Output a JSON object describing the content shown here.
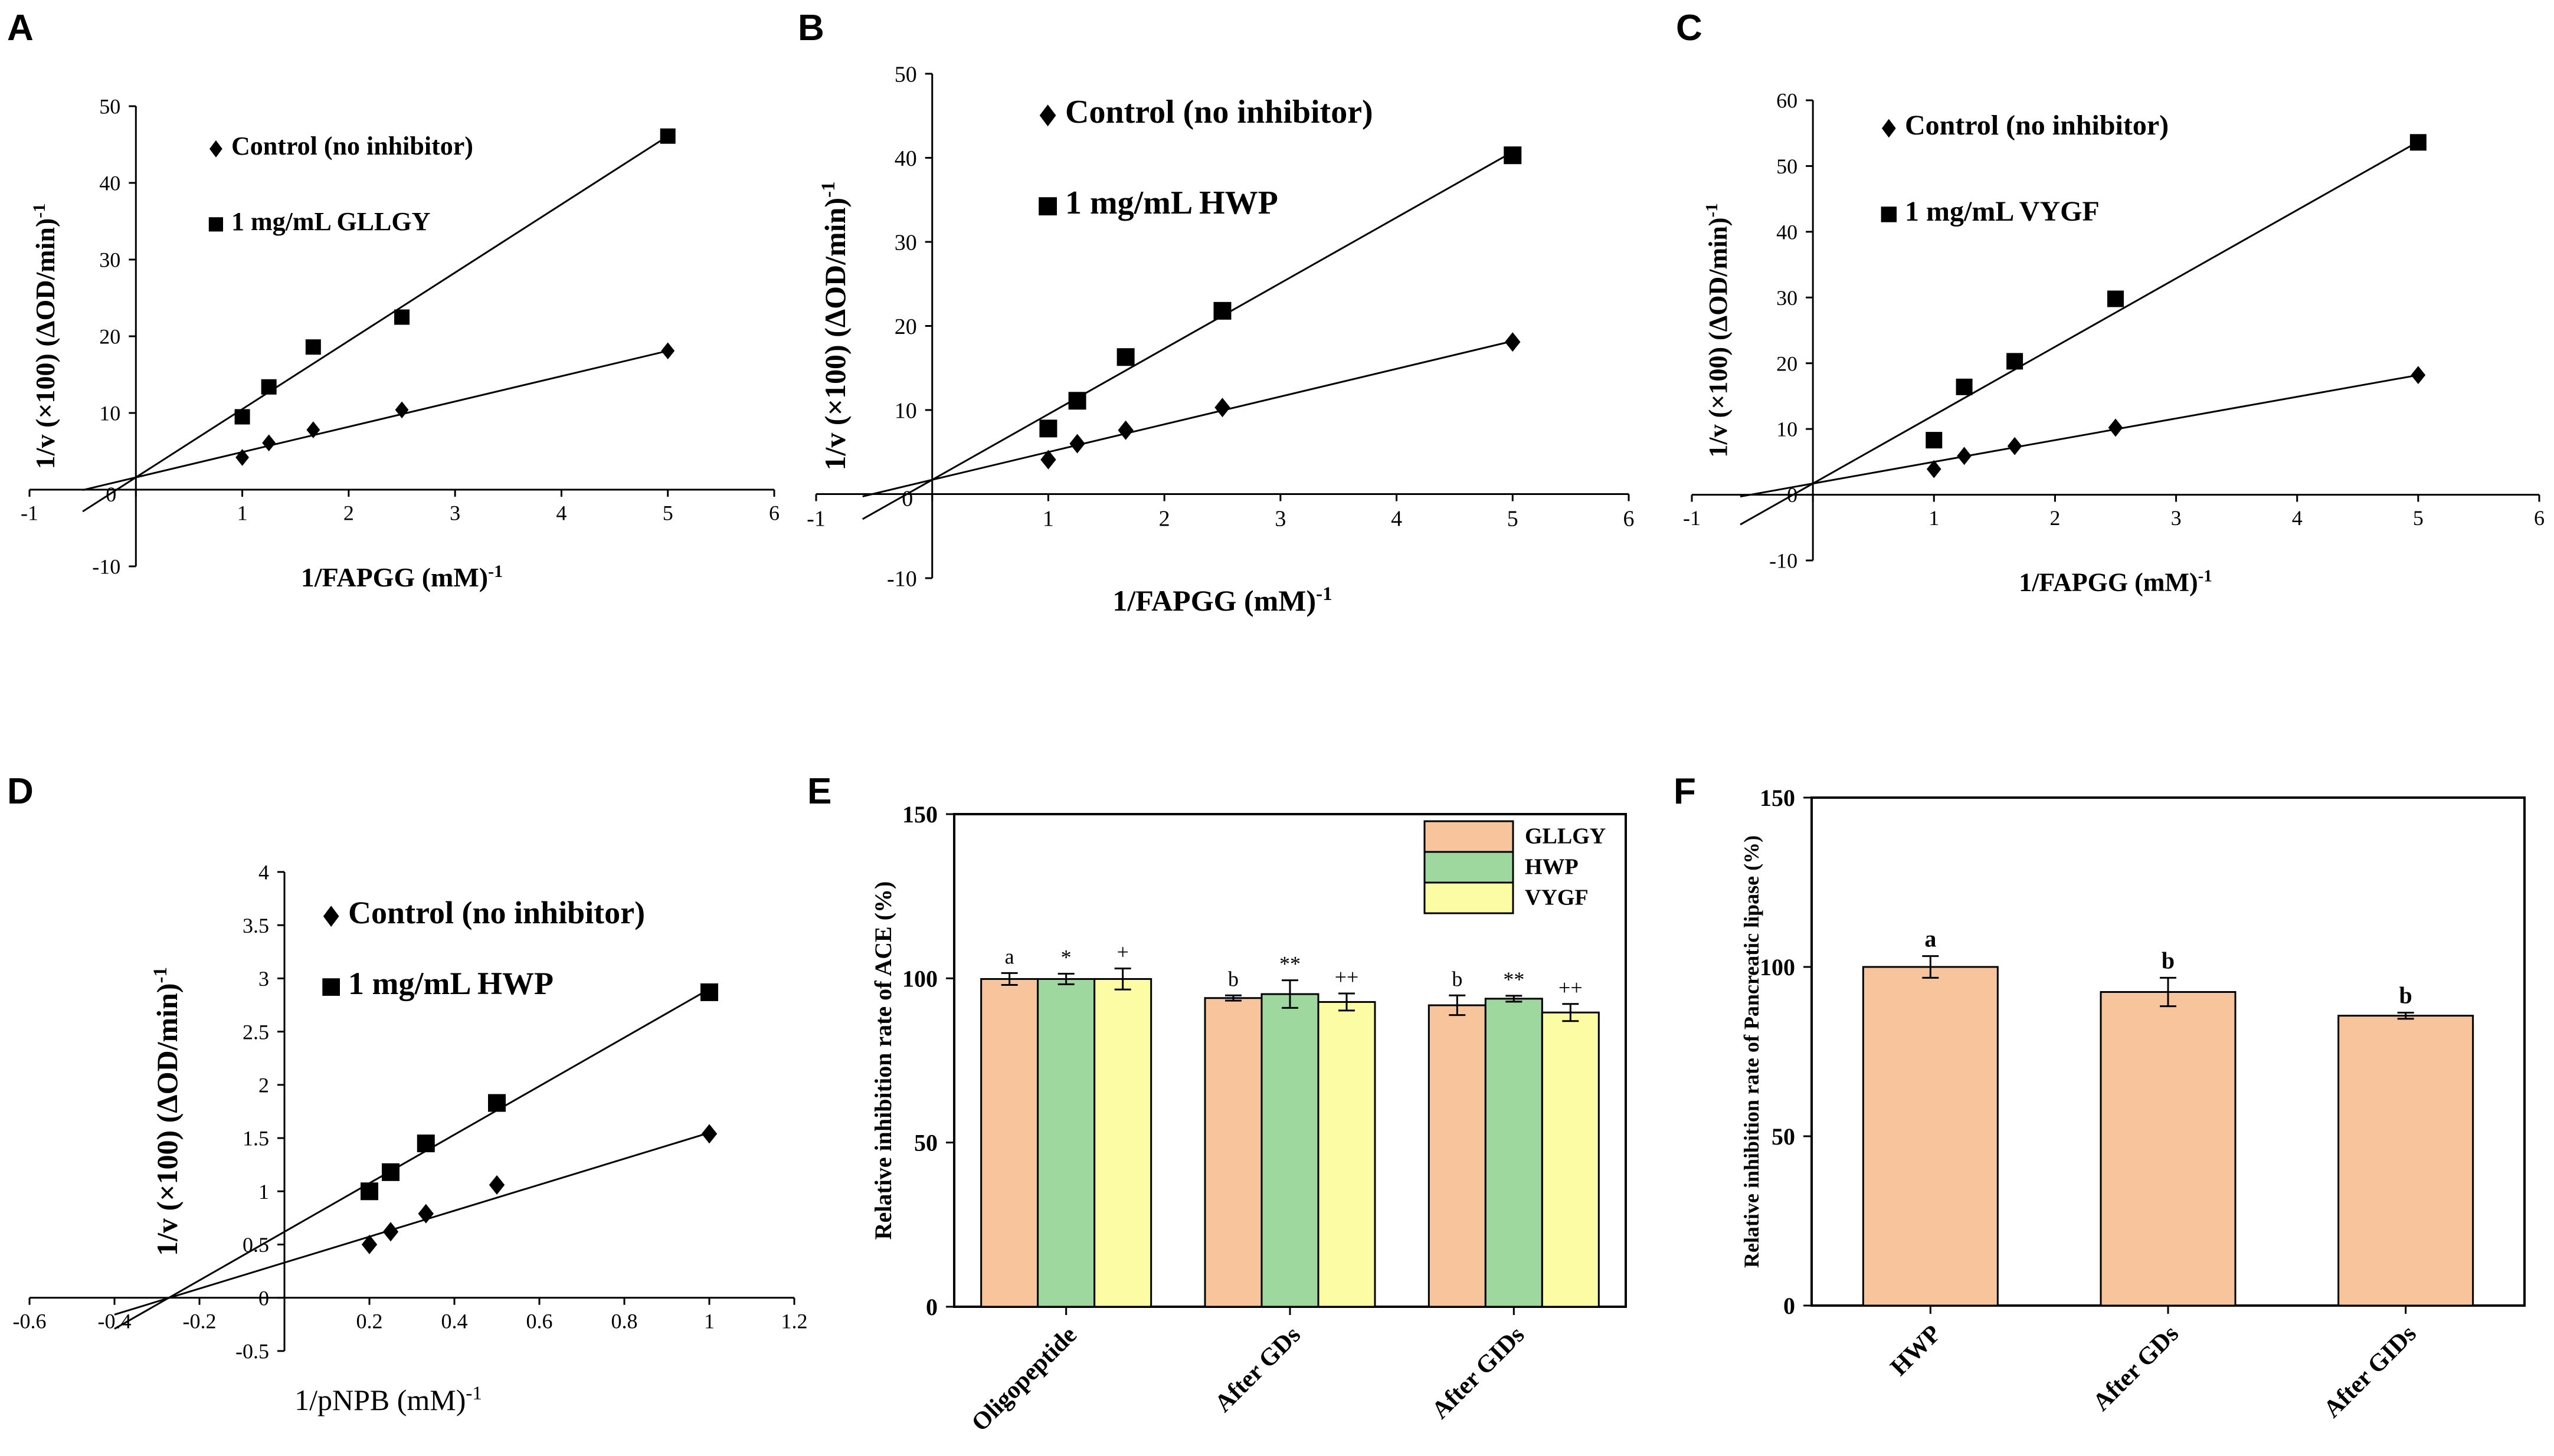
{
  "figure": {
    "panel_letters": [
      "A",
      "B",
      "C",
      "D",
      "E",
      "F"
    ]
  },
  "chart_data": [
    {
      "panel": "A",
      "type": "scatter",
      "xlabel": "1/FAPGG (mM)",
      "xlabel_sup": "-1",
      "ylabel": "1/v (×100) (ΔOD/min)",
      "ylabel_sup": "-1",
      "xlim": [
        -1,
        6
      ],
      "ylim": [
        -10,
        50
      ],
      "xticks": [
        -1,
        0,
        1,
        2,
        3,
        4,
        5,
        6
      ],
      "yticks": [
        -10,
        0,
        10,
        20,
        30,
        40,
        50
      ],
      "xtick_labels": [
        "-1",
        "0",
        "1",
        "2",
        "3",
        "4",
        "5",
        "6"
      ],
      "ytick_labels": [
        "-10",
        "",
        "10",
        "20",
        "30",
        "40",
        "50"
      ],
      "origin_label": "0",
      "series": [
        {
          "name": "Control (no inhibitor)",
          "marker": "diamond",
          "x": [
            1,
            1.25,
            1.667,
            2.5,
            5
          ],
          "y": [
            4.2,
            6.1,
            7.8,
            10.4,
            18.1
          ],
          "fit": {
            "slope": 3.3,
            "intercept": 1.6,
            "x_range": [
              -0.5,
              5
            ]
          }
        },
        {
          "name": "1 mg/mL GLLGY",
          "marker": "square",
          "x": [
            1,
            1.25,
            1.667,
            2.5,
            5
          ],
          "y": [
            9.5,
            13.4,
            18.6,
            22.5,
            46.1
          ],
          "fit": {
            "slope": 8.9,
            "intercept": 1.6,
            "x_range": [
              -0.5,
              5
            ]
          }
        }
      ]
    },
    {
      "panel": "B",
      "type": "scatter",
      "xlabel": "1/FAPGG (mM)",
      "xlabel_sup": "-1",
      "ylabel": "1/v (×100) (ΔOD/min)",
      "ylabel_sup": "-1",
      "xlim": [
        -1,
        6
      ],
      "ylim": [
        -10,
        50
      ],
      "xticks": [
        -1,
        0,
        1,
        2,
        3,
        4,
        5,
        6
      ],
      "yticks": [
        -10,
        0,
        10,
        20,
        30,
        40,
        50
      ],
      "xtick_labels": [
        "-1",
        "0",
        "1",
        "2",
        "3",
        "4",
        "5",
        "6"
      ],
      "ytick_labels": [
        "-10",
        "",
        "10",
        "20",
        "30",
        "40",
        "50"
      ],
      "origin_label": "0",
      "series": [
        {
          "name": "Control (no inhibitor)",
          "marker": "diamond",
          "x": [
            1,
            1.25,
            1.667,
            2.5,
            5
          ],
          "y": [
            4.1,
            6.0,
            7.6,
            10.3,
            18.1
          ],
          "fit": {
            "slope": 3.3,
            "intercept": 1.7,
            "x_range": [
              -0.6,
              5
            ]
          }
        },
        {
          "name": "1 mg/mL HWP",
          "marker": "square",
          "x": [
            1,
            1.25,
            1.667,
            2.5,
            5
          ],
          "y": [
            7.8,
            11.1,
            16.3,
            21.8,
            40.3
          ],
          "fit": {
            "slope": 7.8,
            "intercept": 1.7,
            "x_range": [
              -0.6,
              5
            ]
          }
        }
      ]
    },
    {
      "panel": "C",
      "type": "scatter",
      "xlabel": "1/FAPGG (mM)",
      "xlabel_sup": "-1",
      "ylabel": "1/v (×100) (ΔOD/min)",
      "ylabel_sup": "-1",
      "xlim": [
        -1,
        6
      ],
      "ylim": [
        -10,
        60
      ],
      "xticks": [
        -1,
        0,
        1,
        2,
        3,
        4,
        5,
        6
      ],
      "yticks": [
        -10,
        0,
        10,
        20,
        30,
        40,
        50,
        60
      ],
      "xtick_labels": [
        "-1",
        "0",
        "1",
        "2",
        "3",
        "4",
        "5",
        "6"
      ],
      "ytick_labels": [
        "-10",
        "0",
        "10",
        "20",
        "30",
        "40",
        "50",
        "60"
      ],
      "origin_label": "",
      "series": [
        {
          "name": "Control (no inhibitor)",
          "marker": "diamond",
          "x": [
            1,
            1.25,
            1.667,
            2.5,
            5
          ],
          "y": [
            3.9,
            5.9,
            7.4,
            10.2,
            18.2
          ],
          "fit": {
            "slope": 3.3,
            "intercept": 1.7,
            "x_range": [
              -0.6,
              5
            ]
          }
        },
        {
          "name": "1 mg/mL VYGF",
          "marker": "square",
          "x": [
            1,
            1.25,
            1.667,
            2.5,
            5
          ],
          "y": [
            8.3,
            16.4,
            20.3,
            29.8,
            53.6
          ],
          "fit": {
            "slope": 10.4,
            "intercept": 1.7,
            "x_range": [
              -0.6,
              5
            ]
          }
        }
      ]
    },
    {
      "panel": "D",
      "type": "scatter",
      "xlabel": "1/pNPB (mM)",
      "xlabel_sup": "-1",
      "ylabel": "1/v (×100) (ΔOD/min)",
      "ylabel_sup": "-1",
      "xlim": [
        -0.6,
        1.2
      ],
      "ylim": [
        -0.5,
        4
      ],
      "xticks": [
        -0.6,
        -0.4,
        -0.2,
        0,
        0.2,
        0.4,
        0.6,
        0.8,
        1,
        1.2
      ],
      "yticks": [
        -0.5,
        0,
        0.5,
        1,
        1.5,
        2,
        2.5,
        3,
        3.5,
        4
      ],
      "xtick_labels": [
        "-0.6",
        "-0.4",
        "-0.2",
        "0",
        "0.2",
        "0.4",
        "0.6",
        "0.8",
        "1",
        "1.2"
      ],
      "ytick_labels": [
        "-0.5",
        "0",
        "0.5",
        "1",
        "1.5",
        "2",
        "2.5",
        "3",
        "3.5",
        "4"
      ],
      "origin_label": "",
      "series": [
        {
          "name": "Control (no inhibitor)",
          "marker": "diamond",
          "x": [
            0.2,
            0.25,
            0.333,
            0.5,
            1
          ],
          "y": [
            0.5,
            0.62,
            0.79,
            1.06,
            1.54
          ],
          "fit": {
            "slope": 1.22,
            "intercept": 0.33,
            "x_range": [
              -0.4,
              1
            ]
          }
        },
        {
          "name": "1 mg/mL HWP",
          "marker": "square",
          "x": [
            0.2,
            0.25,
            0.333,
            0.5,
            1
          ],
          "y": [
            1.0,
            1.18,
            1.45,
            1.83,
            2.87
          ],
          "fit": {
            "slope": 2.28,
            "intercept": 0.62,
            "x_range": [
              -0.4,
              1
            ]
          }
        }
      ]
    },
    {
      "panel": "E",
      "type": "bar",
      "ylabel": "Relative inhibition rate of ACE (%)",
      "ylim": [
        0,
        150
      ],
      "yticks": [
        0,
        50,
        100,
        150
      ],
      "ytick_labels": [
        "0",
        "50",
        "100",
        "150"
      ],
      "categories": [
        "Oligopeptide",
        "After GDs",
        "After GIDs"
      ],
      "legend_position": "top-right",
      "series": [
        {
          "name": "GLLGY",
          "color": "#F8C49C",
          "values": [
            99.8,
            94.0,
            91.8
          ],
          "errors": [
            1.8,
            0.8,
            3.0
          ],
          "labels": [
            "a",
            "b",
            "b"
          ]
        },
        {
          "name": "HWP",
          "color": "#9ED89E",
          "values": [
            99.8,
            95.2,
            93.8
          ],
          "errors": [
            1.6,
            4.2,
            0.9
          ],
          "labels": [
            "*",
            "**",
            "**"
          ]
        },
        {
          "name": "VYGF",
          "color": "#FCFCA4",
          "values": [
            99.8,
            92.8,
            89.6
          ],
          "errors": [
            3.2,
            2.6,
            2.6
          ],
          "labels": [
            "+",
            "++",
            "++"
          ]
        }
      ]
    },
    {
      "panel": "F",
      "type": "bar",
      "ylabel": "Relative inhibition rate of Pancreatic lipase (%)",
      "ylim": [
        0,
        150
      ],
      "yticks": [
        0,
        50,
        100,
        150
      ],
      "ytick_labels": [
        "0",
        "50",
        "100",
        "150"
      ],
      "categories": [
        "HWP",
        "After GDs",
        "After GIDs"
      ],
      "series": [
        {
          "name": "Pancreatic lipase",
          "color": "#F8C49C",
          "values": [
            100.0,
            92.6,
            85.6
          ],
          "errors": [
            3.2,
            4.2,
            0.9
          ],
          "labels": [
            "a",
            "b",
            "b"
          ]
        }
      ]
    }
  ]
}
